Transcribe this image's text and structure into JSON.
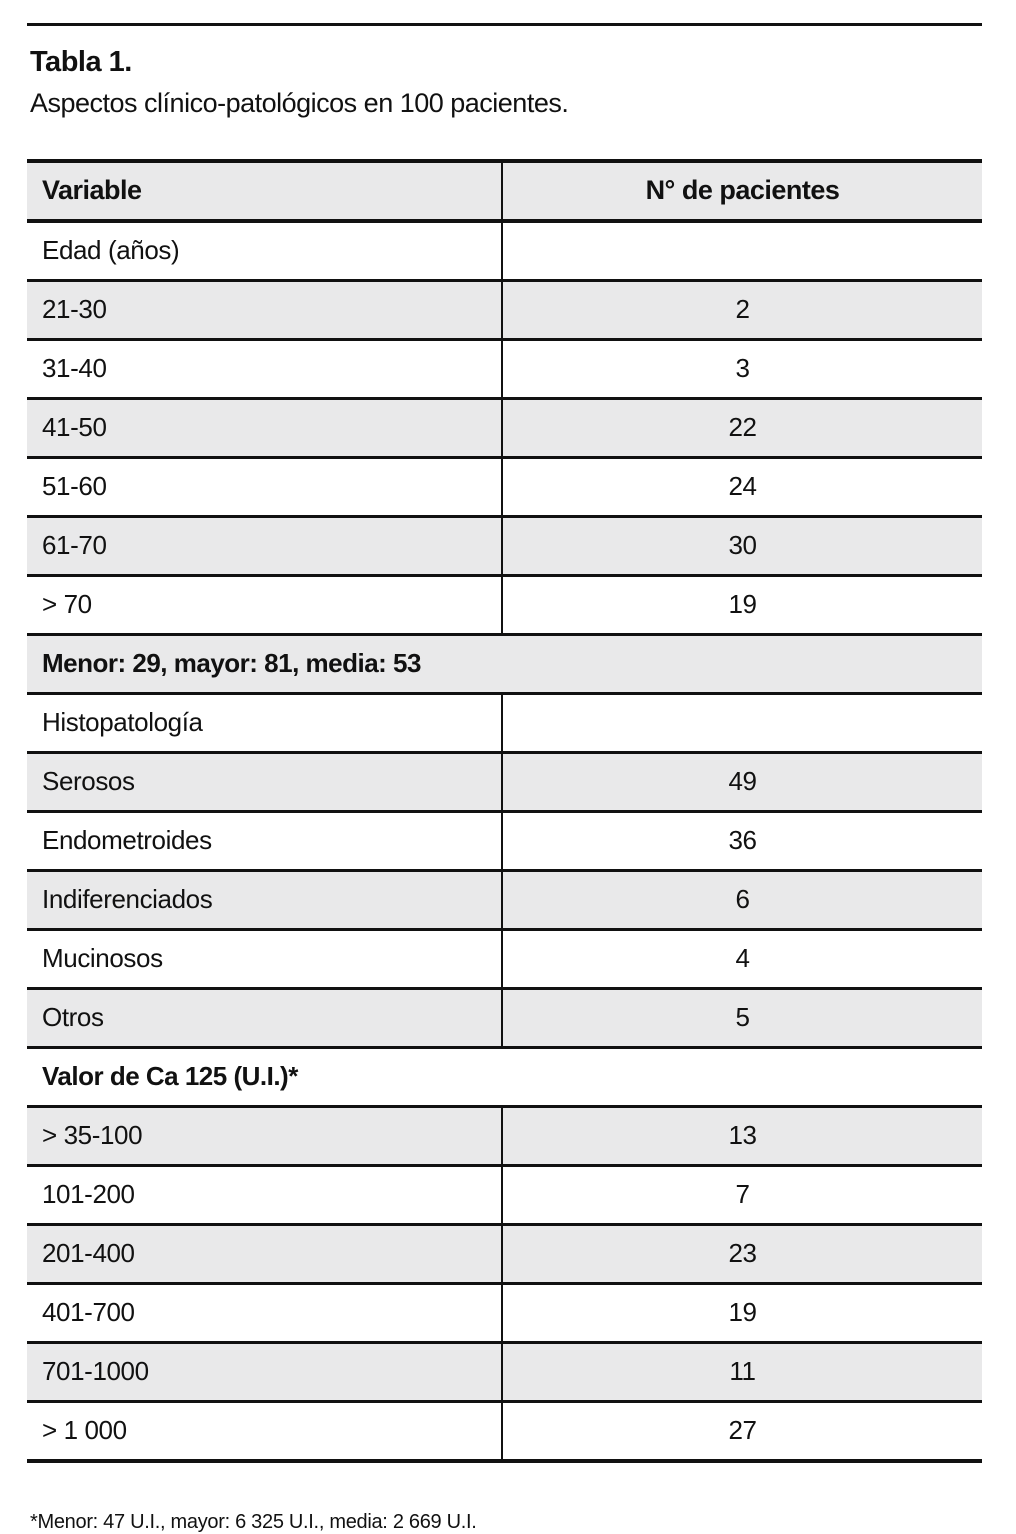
{
  "page": {
    "title": "Tabla 1.",
    "subtitle": "Aspectos clínico-patológicos en 100 pacientes.",
    "footnote": "*Menor: 47 U.I., mayor: 6 325 U.I., media: 2 669 U.I."
  },
  "table": {
    "columns": [
      "Variable",
      "N° de pacientes"
    ],
    "rows": [
      {
        "label": "Edad (años)",
        "value": "",
        "span": false,
        "bold": false
      },
      {
        "label": "21-30",
        "value": "2",
        "span": false,
        "bold": false
      },
      {
        "label": "31-40",
        "value": "3",
        "span": false,
        "bold": false
      },
      {
        "label": "41-50",
        "value": "22",
        "span": false,
        "bold": false
      },
      {
        "label": "51-60",
        "value": "24",
        "span": false,
        "bold": false
      },
      {
        "label": "61-70",
        "value": "30",
        "span": false,
        "bold": false
      },
      {
        "label": "> 70",
        "value": "19",
        "span": false,
        "bold": false
      },
      {
        "label": "Menor: 29, mayor: 81, media: 53",
        "value": "",
        "span": true,
        "bold": true
      },
      {
        "label": "Histopatología",
        "value": "",
        "span": false,
        "bold": false
      },
      {
        "label": "Serosos",
        "value": "49",
        "span": false,
        "bold": false
      },
      {
        "label": "Endometroides",
        "value": "36",
        "span": false,
        "bold": false
      },
      {
        "label": "Indiferenciados",
        "value": "6",
        "span": false,
        "bold": false
      },
      {
        "label": "Mucinosos",
        "value": "4",
        "span": false,
        "bold": false
      },
      {
        "label": "Otros",
        "value": "5",
        "span": false,
        "bold": false
      },
      {
        "label": "Valor de Ca 125 (U.I.)*",
        "value": "",
        "span": true,
        "bold": true
      },
      {
        "label": "> 35-100",
        "value": "13",
        "span": false,
        "bold": false
      },
      {
        "label": "101-200",
        "value": "7",
        "span": false,
        "bold": false
      },
      {
        "label": "201-400",
        "value": "23",
        "span": false,
        "bold": false
      },
      {
        "label": "401-700",
        "value": "19",
        "span": false,
        "bold": false
      },
      {
        "label": "701-1000",
        "value": "11",
        "span": false,
        "bold": false
      },
      {
        "label": "> 1 000",
        "value": "27",
        "span": false,
        "bold": false
      }
    ],
    "colors": {
      "stripe_gray": "#e9e9ea",
      "border_black": "#111111"
    }
  }
}
